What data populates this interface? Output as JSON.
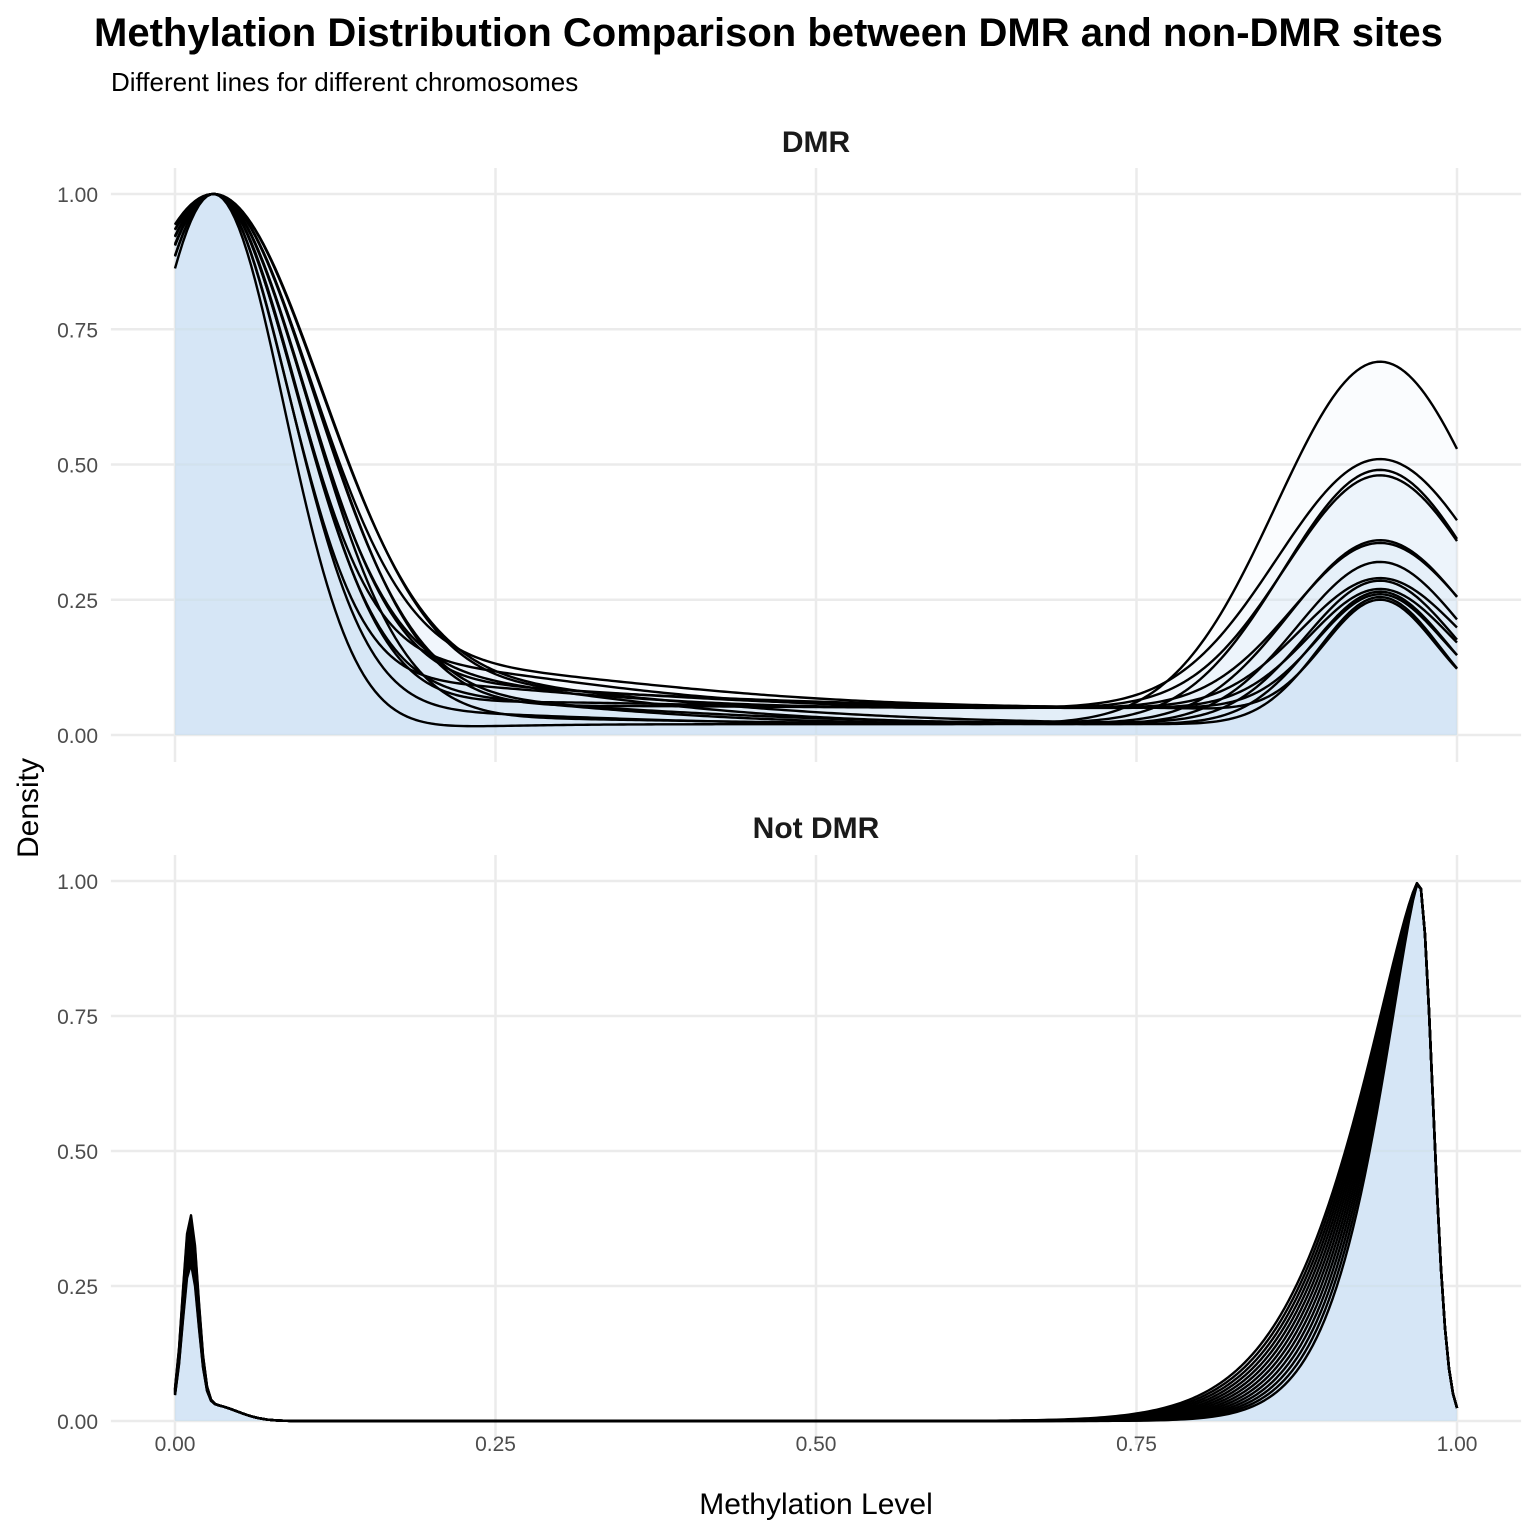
{
  "chart_data": {
    "type": "area",
    "title": "Methylation Distribution Comparison between DMR and non-DMR sites",
    "subtitle": "Different lines for different chromosomes",
    "xlabel": "Methylation Level",
    "ylabel": "Density",
    "xlim": [
      0,
      1
    ],
    "ylim": [
      0,
      1
    ],
    "x_ticks": [
      "0.00",
      "0.25",
      "0.50",
      "0.75",
      "1.00"
    ],
    "y_ticks": [
      "0.00",
      "0.25",
      "0.50",
      "0.75",
      "1.00"
    ],
    "grid": true,
    "legend": "none",
    "colors": {
      "fill": "#cfe1f2",
      "line": "#000000",
      "grid": "#ebebeb"
    },
    "panels": [
      {
        "name": "DMR",
        "peak1": {
          "x": 0.03,
          "y": 1.0,
          "width_range": [
            0.055,
            0.085
          ],
          "tail_range": [
            0.0,
            0.14
          ],
          "left_start_range": [
            0.88,
            0.94
          ]
        },
        "peak2": {
          "x": 0.94,
          "heights": [
            0.69,
            0.51,
            0.49,
            0.48,
            0.36,
            0.355,
            0.32,
            0.29,
            0.285,
            0.27,
            0.265,
            0.26,
            0.255,
            0.25
          ],
          "width_range": [
            0.08,
            0.045
          ],
          "end_range": [
            0.5,
            0.14
          ]
        },
        "valley_range": [
          0.02,
          0.075
        ]
      },
      {
        "name": "Not DMR",
        "peak1": {
          "x": 0.012,
          "heights_range": [
            0.27,
            0.36
          ],
          "width": 0.006,
          "start_range": [
            0.2,
            0.3
          ]
        },
        "shoulder": {
          "x": 0.028,
          "y": 0.03
        },
        "peak2": {
          "x": 0.97,
          "y": 1.0,
          "left_width_range": [
            0.05,
            0.075
          ],
          "right_width": 0.011
        },
        "line_count": 14
      }
    ]
  }
}
